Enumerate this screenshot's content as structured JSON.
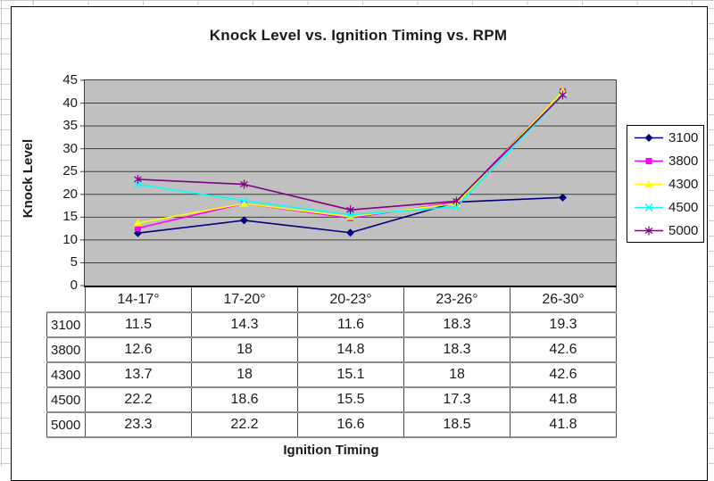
{
  "chart": {
    "title": "Knock Level vs. Ignition Timing vs. RPM",
    "y_axis_title": "Knock Level",
    "x_axis_title": "Ignition Timing"
  },
  "chart_data": {
    "type": "line",
    "title": "Knock Level vs. Ignition Timing vs. RPM",
    "xlabel": "Ignition Timing",
    "ylabel": "Knock Level",
    "categories": [
      "14-17°",
      "17-20°",
      "20-23°",
      "23-26°",
      "26-30°"
    ],
    "series": [
      {
        "name": "3100",
        "values": [
          11.5,
          14.3,
          11.6,
          18.3,
          19.3
        ],
        "color": "#000080",
        "marker": "diamond"
      },
      {
        "name": "3800",
        "values": [
          12.6,
          18,
          14.8,
          18.3,
          42.6
        ],
        "color": "#ff00ff",
        "marker": "square"
      },
      {
        "name": "4300",
        "values": [
          13.7,
          18,
          15.1,
          18,
          42.6
        ],
        "color": "#ffff00",
        "marker": "triangle"
      },
      {
        "name": "4500",
        "values": [
          22.2,
          18.6,
          15.5,
          17.3,
          41.8
        ],
        "color": "#00ffff",
        "marker": "x"
      },
      {
        "name": "5000",
        "values": [
          23.3,
          22.2,
          16.6,
          18.5,
          41.8
        ],
        "color": "#800080",
        "marker": "asterisk"
      }
    ],
    "ylim": [
      0,
      45
    ],
    "ytick_step": 5,
    "grid": true,
    "legend_position": "right",
    "plot_bg": "#c0c0c0",
    "gridline_color": "#404040"
  },
  "table": {
    "col_headers": [
      "14-17°",
      "17-20°",
      "20-23°",
      "23-26°",
      "26-30°"
    ],
    "rows": [
      {
        "label": "3100",
        "values": [
          "11.5",
          "14.3",
          "11.6",
          "18.3",
          "19.3"
        ]
      },
      {
        "label": "3800",
        "values": [
          "12.6",
          "18",
          "14.8",
          "18.3",
          "42.6"
        ]
      },
      {
        "label": "4300",
        "values": [
          "13.7",
          "18",
          "15.1",
          "18",
          "42.6"
        ]
      },
      {
        "label": "4500",
        "values": [
          "22.2",
          "18.6",
          "15.5",
          "17.3",
          "41.8"
        ]
      },
      {
        "label": "5000",
        "values": [
          "23.3",
          "22.2",
          "16.6",
          "18.5",
          "41.8"
        ]
      }
    ]
  },
  "legend": {
    "items": [
      "3100",
      "3800",
      "4300",
      "4500",
      "5000"
    ]
  }
}
